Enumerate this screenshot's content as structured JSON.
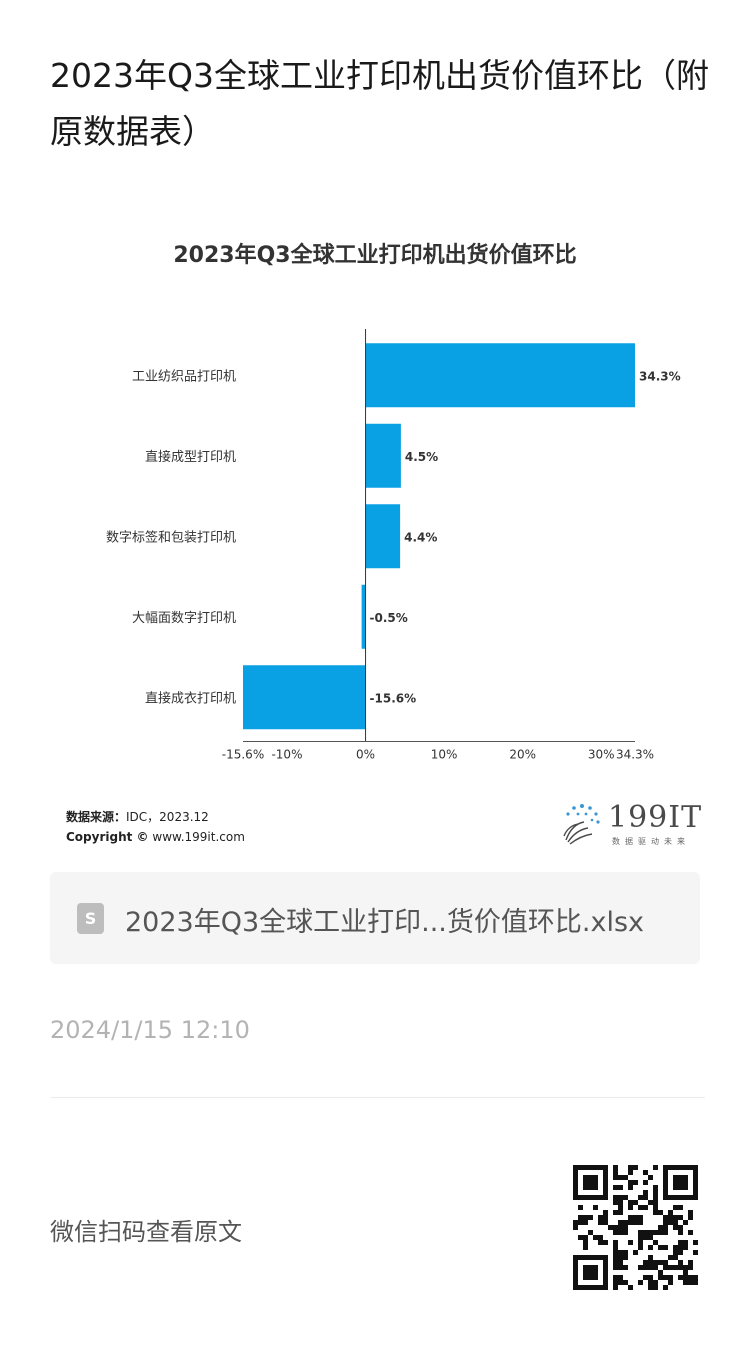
{
  "page": {
    "title": "2023年Q3全球工业打印机出货价值环比（附原数据表）"
  },
  "chart_data": {
    "type": "bar",
    "orientation": "horizontal",
    "title": "2023年Q3全球工业打印机出货价值环比",
    "categories": [
      "工业纺织品打印机",
      "直接成型打印机",
      "数字标签和包装打印机",
      "大幅面数字打印机",
      "直接成衣打印机"
    ],
    "values": [
      34.3,
      4.5,
      4.4,
      -0.5,
      -15.6
    ],
    "data_labels": [
      "34.3%",
      "4.5%",
      "4.4%",
      "-0.5%",
      "-15.6%"
    ],
    "x_ticks": [
      "-15.6%",
      "-10%",
      "0%",
      "10%",
      "20%",
      "30%",
      "34.3%"
    ],
    "x_tick_values": [
      -15.6,
      -10,
      0,
      10,
      20,
      30,
      34.3
    ],
    "xlim": [
      -15.6,
      34.3
    ],
    "bar_color": "#0aa0e4",
    "grid": false
  },
  "source": {
    "label": "数据来源：",
    "value": "IDC，2023.12",
    "copyright_label": "Copyright ©",
    "copyright_value": "www.199it.com"
  },
  "logo": {
    "text": "199IT",
    "subtitle": "数据驱动未来"
  },
  "attachment": {
    "icon": "spreadsheet-file-icon",
    "icon_letter": "S",
    "filename": "2023年Q3全球工业打印...货价值环比.xlsx"
  },
  "timestamp": "2024/1/15 12:10",
  "qr": {
    "label": "微信扫码查看原文",
    "icon": "qr-code-icon"
  }
}
